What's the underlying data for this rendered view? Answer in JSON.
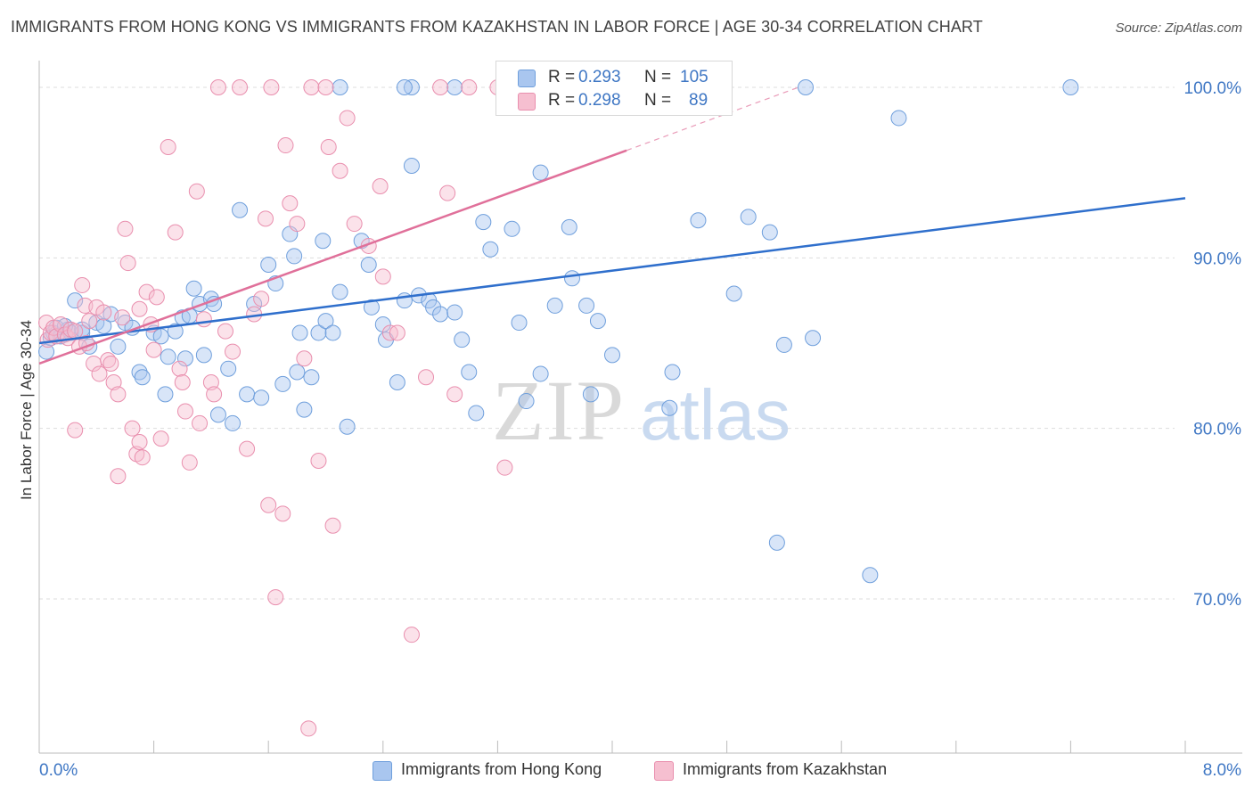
{
  "title": "IMMIGRANTS FROM HONG KONG VS IMMIGRANTS FROM KAZAKHSTAN IN LABOR FORCE | AGE 30-34 CORRELATION CHART",
  "source": "Source: ZipAtlas.com",
  "watermark": {
    "zip": "ZIP",
    "atlas": "atlas"
  },
  "colors": {
    "blue_fill": "#a9c6ef",
    "blue_stroke": "#6f9fdc",
    "blue_line": "#2f6fcc",
    "pink_fill": "#f6bfd0",
    "pink_stroke": "#e98fae",
    "pink_line": "#e0709a",
    "tick_label": "#3f77c4",
    "grid": "#dddddd"
  },
  "stats_legend": [
    {
      "r_label": "R =",
      "r_value": "0.293",
      "n_label": "N =",
      "n_value": "105",
      "color": "blue"
    },
    {
      "r_label": "R =",
      "r_value": "0.298",
      "n_label": "N =",
      "n_value": "89",
      "color": "pink"
    }
  ],
  "chart_data": {
    "type": "scatter",
    "title": "IMMIGRANTS FROM HONG KONG VS IMMIGRANTS FROM KAZAKHSTAN IN LABOR FORCE | AGE 30-34 CORRELATION CHART",
    "xlabel": "",
    "ylabel": "In Labor Force | Age 30-34",
    "xlim": [
      0,
      8
    ],
    "ylim": [
      60,
      101
    ],
    "x_tick_labels": [
      {
        "value": 0,
        "label": "0.0%"
      },
      {
        "value": 8,
        "label": "8.0%"
      }
    ],
    "y_tick_labels": [
      {
        "value": 100,
        "label": "100.0%"
      },
      {
        "value": 90,
        "label": "90.0%"
      },
      {
        "value": 80,
        "label": "80.0%"
      },
      {
        "value": 70,
        "label": "70.0%"
      }
    ],
    "grid": true,
    "legend_position": "bottom",
    "series": [
      {
        "name": "Immigrants from Hong Kong",
        "color": "#6f9fdc",
        "trend": {
          "x": [
            0,
            8
          ],
          "y": [
            85.0,
            93.5
          ],
          "dashed_extension": false
        },
        "points": [
          [
            0.05,
            84.5
          ],
          [
            0.08,
            85.3
          ],
          [
            0.1,
            85.6
          ],
          [
            0.12,
            85.9
          ],
          [
            0.15,
            85.4
          ],
          [
            0.2,
            85.8
          ],
          [
            0.22,
            85.6
          ],
          [
            0.25,
            87.5
          ],
          [
            0.3,
            85.6
          ],
          [
            0.35,
            84.8
          ],
          [
            0.4,
            86.2
          ],
          [
            0.45,
            86
          ],
          [
            0.5,
            86.7
          ],
          [
            0.55,
            84.8
          ],
          [
            0.6,
            86.2
          ],
          [
            0.65,
            85.9
          ],
          [
            0.7,
            83.3
          ],
          [
            0.72,
            83
          ],
          [
            0.8,
            85.6
          ],
          [
            0.85,
            85.4
          ],
          [
            0.88,
            82
          ],
          [
            0.9,
            84.2
          ],
          [
            0.95,
            85.7
          ],
          [
            1.0,
            86.5
          ],
          [
            1.02,
            84.1
          ],
          [
            1.05,
            86.6
          ],
          [
            1.08,
            88.2
          ],
          [
            1.12,
            87.3
          ],
          [
            1.15,
            84.3
          ],
          [
            1.2,
            87.6
          ],
          [
            1.22,
            87.3
          ],
          [
            1.25,
            80.8
          ],
          [
            1.32,
            83.5
          ],
          [
            1.35,
            80.3
          ],
          [
            1.4,
            92.8
          ],
          [
            1.45,
            82
          ],
          [
            1.5,
            87.3
          ],
          [
            1.55,
            81.8
          ],
          [
            1.6,
            89.6
          ],
          [
            1.65,
            88.5
          ],
          [
            1.7,
            82.6
          ],
          [
            1.75,
            91.4
          ],
          [
            1.78,
            90.1
          ],
          [
            1.8,
            83.3
          ],
          [
            1.82,
            85.6
          ],
          [
            1.85,
            81.1
          ],
          [
            1.9,
            83
          ],
          [
            1.95,
            85.6
          ],
          [
            1.98,
            91
          ],
          [
            2.0,
            86.3
          ],
          [
            2.05,
            85.6
          ],
          [
            2.1,
            88
          ],
          [
            2.15,
            80.1
          ],
          [
            2.25,
            91
          ],
          [
            2.3,
            89.6
          ],
          [
            2.1,
            100
          ],
          [
            2.6,
            100
          ],
          [
            2.32,
            87.1
          ],
          [
            2.4,
            86.1
          ],
          [
            2.42,
            85.2
          ],
          [
            2.5,
            82.7
          ],
          [
            2.55,
            87.5
          ],
          [
            2.6,
            95.4
          ],
          [
            2.65,
            87.8
          ],
          [
            2.72,
            87.5
          ],
          [
            2.75,
            87.1
          ],
          [
            2.8,
            86.7
          ],
          [
            2.9,
            86.8
          ],
          [
            2.95,
            85.2
          ],
          [
            3.0,
            83.3
          ],
          [
            3.05,
            80.9
          ],
          [
            3.1,
            92.1
          ],
          [
            3.15,
            90.5
          ],
          [
            3.3,
            91.7
          ],
          [
            3.35,
            86.2
          ],
          [
            3.4,
            81.6
          ],
          [
            3.5,
            83.2
          ],
          [
            3.5,
            95
          ],
          [
            3.6,
            87.2
          ],
          [
            3.7,
            91.8
          ],
          [
            3.72,
            88.8
          ],
          [
            3.82,
            87.2
          ],
          [
            3.85,
            82
          ],
          [
            3.9,
            86.3
          ],
          [
            4.0,
            84.3
          ],
          [
            4.0,
            100
          ],
          [
            4.1,
            100
          ],
          [
            4.4,
            81.2
          ],
          [
            4.42,
            83.3
          ],
          [
            4.6,
            92.2
          ],
          [
            4.85,
            87.9
          ],
          [
            4.95,
            92.4
          ],
          [
            5.1,
            91.5
          ],
          [
            5.15,
            73.3
          ],
          [
            5.2,
            84.9
          ],
          [
            5.35,
            100
          ],
          [
            5.4,
            85.3
          ],
          [
            5.8,
            71.4
          ],
          [
            6.0,
            98.2
          ],
          [
            7.2,
            100
          ],
          [
            3.3,
            100
          ],
          [
            2.55,
            100
          ],
          [
            2.9,
            100
          ],
          [
            0.18,
            86
          ],
          [
            0.3,
            85.8
          ]
        ]
      },
      {
        "name": "Immigrants from Kazakhstan",
        "color": "#e98fae",
        "trend": {
          "x": [
            0,
            4.1
          ],
          "y": [
            83.8,
            96.3
          ],
          "dashed_extension": {
            "x": [
              4.1,
              5.3
            ],
            "y": [
              96.3,
              100
            ]
          }
        },
        "points": [
          [
            0.05,
            86.2
          ],
          [
            0.06,
            85.2
          ],
          [
            0.08,
            85.6
          ],
          [
            0.1,
            85.9
          ],
          [
            0.12,
            85.4
          ],
          [
            0.15,
            86.1
          ],
          [
            0.18,
            85.5
          ],
          [
            0.2,
            85.3
          ],
          [
            0.22,
            85.8
          ],
          [
            0.25,
            85.7
          ],
          [
            0.3,
            88.4
          ],
          [
            0.32,
            87.2
          ],
          [
            0.35,
            86.3
          ],
          [
            0.38,
            83.8
          ],
          [
            0.4,
            87.1
          ],
          [
            0.45,
            86.8
          ],
          [
            0.48,
            84
          ],
          [
            0.5,
            83.8
          ],
          [
            0.52,
            82.7
          ],
          [
            0.55,
            82
          ],
          [
            0.58,
            86.5
          ],
          [
            0.6,
            91.7
          ],
          [
            0.62,
            89.7
          ],
          [
            0.65,
            80
          ],
          [
            0.68,
            78.5
          ],
          [
            0.7,
            79.2
          ],
          [
            0.72,
            78.3
          ],
          [
            0.75,
            88
          ],
          [
            0.78,
            86.1
          ],
          [
            0.8,
            84.6
          ],
          [
            0.82,
            87.7
          ],
          [
            0.85,
            79.4
          ],
          [
            0.9,
            96.5
          ],
          [
            0.95,
            91.5
          ],
          [
            0.98,
            83.5
          ],
          [
            1.0,
            82.7
          ],
          [
            1.02,
            81
          ],
          [
            1.05,
            78
          ],
          [
            1.1,
            93.9
          ],
          [
            1.12,
            80.3
          ],
          [
            1.15,
            86.4
          ],
          [
            1.2,
            82.7
          ],
          [
            1.22,
            82
          ],
          [
            1.25,
            100
          ],
          [
            1.3,
            85.7
          ],
          [
            1.35,
            84.5
          ],
          [
            1.4,
            100
          ],
          [
            1.45,
            78.8
          ],
          [
            1.5,
            86.7
          ],
          [
            1.55,
            87.6
          ],
          [
            1.58,
            92.3
          ],
          [
            1.6,
            75.5
          ],
          [
            1.62,
            100
          ],
          [
            1.65,
            70.1
          ],
          [
            1.7,
            75
          ],
          [
            1.72,
            96.6
          ],
          [
            1.75,
            93.2
          ],
          [
            1.8,
            92
          ],
          [
            1.85,
            84.1
          ],
          [
            1.88,
            62.4
          ],
          [
            1.9,
            100
          ],
          [
            1.95,
            78.1
          ],
          [
            2.0,
            100
          ],
          [
            2.02,
            96.5
          ],
          [
            2.05,
            74.3
          ],
          [
            2.1,
            95.1
          ],
          [
            2.15,
            98.2
          ],
          [
            2.2,
            92
          ],
          [
            2.3,
            90.7
          ],
          [
            2.38,
            94.2
          ],
          [
            2.4,
            88.9
          ],
          [
            2.45,
            85.6
          ],
          [
            2.5,
            85.6
          ],
          [
            2.6,
            67.9
          ],
          [
            2.7,
            83
          ],
          [
            2.8,
            100
          ],
          [
            2.85,
            93.8
          ],
          [
            2.9,
            82
          ],
          [
            3.0,
            100
          ],
          [
            3.2,
            100
          ],
          [
            3.25,
            77.7
          ],
          [
            3.3,
            100
          ],
          [
            3.35,
            100
          ],
          [
            0.55,
            77.2
          ],
          [
            0.42,
            83.2
          ],
          [
            0.28,
            84.8
          ],
          [
            0.33,
            85
          ],
          [
            0.25,
            79.9
          ],
          [
            0.7,
            87
          ]
        ]
      }
    ]
  },
  "bottom_legend": [
    {
      "label": "Immigrants from Hong Kong",
      "color": "blue"
    },
    {
      "label": "Immigrants from Kazakhstan",
      "color": "pink"
    }
  ]
}
